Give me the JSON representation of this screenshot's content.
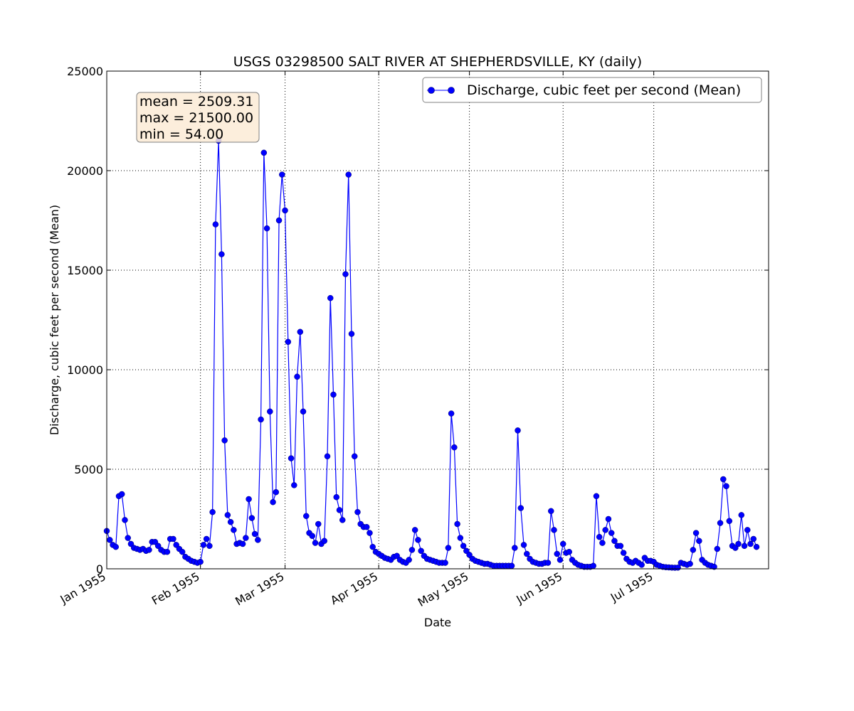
{
  "chart_data": {
    "type": "line",
    "title": "USGS 03298500 SALT RIVER AT SHEPHERDSVILLE, KY (daily)",
    "xlabel": "Date",
    "ylabel": "Discharge, cubic feet per second (Mean)",
    "ylim": [
      0,
      25000
    ],
    "yticks": [
      0,
      5000,
      10000,
      15000,
      20000,
      25000
    ],
    "xlim": [
      "1955-01-01",
      "1955-08-08"
    ],
    "xticks": [
      {
        "date": "1955-01-01",
        "label": "Jan 1955"
      },
      {
        "date": "1955-02-01",
        "label": "Feb 1955"
      },
      {
        "date": "1955-03-01",
        "label": "Mar 1955"
      },
      {
        "date": "1955-04-01",
        "label": "Apr 1955"
      },
      {
        "date": "1955-05-01",
        "label": "May 1955"
      },
      {
        "date": "1955-06-01",
        "label": "Jun 1955"
      },
      {
        "date": "1955-07-01",
        "label": "Jul 1955"
      }
    ],
    "grid": true,
    "legend_position": "top-right",
    "series_color": "#0000ff",
    "series": [
      {
        "name": "Discharge, cubic feet per second (Mean)",
        "start_date": "1955-01-01",
        "values": [
          1900,
          1450,
          1200,
          1100,
          3650,
          3750,
          2450,
          1550,
          1250,
          1050,
          1000,
          950,
          1000,
          900,
          950,
          1350,
          1350,
          1150,
          950,
          850,
          850,
          1500,
          1500,
          1200,
          1000,
          850,
          600,
          500,
          400,
          350,
          300,
          350,
          1200,
          1500,
          1150,
          2850,
          17300,
          21500,
          15800,
          6450,
          2700,
          2350,
          1950,
          1250,
          1300,
          1250,
          1550,
          3500,
          2550,
          1750,
          1450,
          7500,
          20900,
          17100,
          7900,
          3350,
          3850,
          17500,
          19800,
          18000,
          11400,
          5550,
          4200,
          9650,
          11900,
          7900,
          2650,
          1800,
          1650,
          1300,
          2250,
          1250,
          1400,
          5650,
          13600,
          8750,
          3600,
          2950,
          2450,
          14800,
          19800,
          11800,
          5650,
          2850,
          2250,
          2100,
          2100,
          1800,
          1100,
          850,
          750,
          650,
          550,
          500,
          450,
          600,
          650,
          450,
          350,
          300,
          450,
          950,
          1950,
          1450,
          900,
          650,
          500,
          450,
          400,
          350,
          300,
          300,
          300,
          1050,
          7800,
          6100,
          2250,
          1550,
          1150,
          900,
          700,
          500,
          400,
          350,
          300,
          250,
          250,
          200,
          150,
          150,
          150,
          150,
          150,
          150,
          150,
          1050,
          6950,
          3050,
          1200,
          750,
          500,
          350,
          300,
          250,
          250,
          300,
          300,
          2900,
          1950,
          750,
          450,
          1250,
          800,
          850,
          450,
          300,
          200,
          150,
          100,
          100,
          100,
          150,
          3650,
          1600,
          1300,
          1950,
          2500,
          1800,
          1400,
          1150,
          1150,
          800,
          500,
          350,
          300,
          400,
          300,
          200,
          550,
          400,
          400,
          350,
          200,
          150,
          100,
          80,
          70,
          60,
          54,
          60,
          300,
          250,
          200,
          250,
          950,
          1800,
          1400,
          450,
          300,
          200,
          150,
          100,
          1000,
          2300,
          4500,
          4150,
          2400,
          1150,
          1050,
          1250,
          2700,
          1150,
          1950,
          1250,
          1500,
          1100
        ]
      }
    ],
    "annotations": {
      "stats_lines": [
        "mean = 2509.31",
        "max = 21500.00",
        "min = 54.00"
      ],
      "stats_box_fill": "#fbebd6",
      "stats_box_stroke": "#808080"
    }
  }
}
